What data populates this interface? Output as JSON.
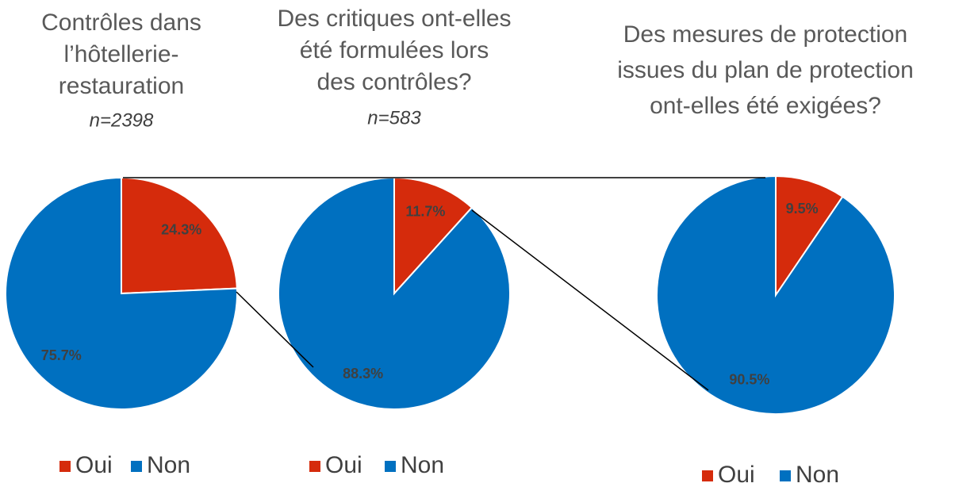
{
  "chart_data": [
    {
      "type": "pie",
      "title": [
        "Contrôles dans",
        "l’hôtellerie-",
        "restauration"
      ],
      "subtitle": "n=2398",
      "categories": [
        "Oui",
        "Non"
      ],
      "values": [
        24.3,
        75.7
      ],
      "value_labels": [
        "24.3%",
        "75.7%"
      ],
      "colors": [
        "#d52b0c",
        "#0070c0"
      ]
    },
    {
      "type": "pie",
      "title": [
        "Des critiques ont-elles",
        "été formulées lors",
        "des contrôles?"
      ],
      "subtitle": "n=583",
      "categories": [
        "Oui",
        "Non"
      ],
      "values": [
        11.7,
        88.3
      ],
      "value_labels": [
        "11.7%",
        "88.3%"
      ],
      "colors": [
        "#d52b0c",
        "#0070c0"
      ]
    },
    {
      "type": "pie",
      "title": [
        "Des mesures de protection",
        "issues du plan de protection",
        "ont-elles été exigées?"
      ],
      "categories": [
        "Oui",
        "Non"
      ],
      "values": [
        9.5,
        90.5
      ],
      "value_labels": [
        "9.5%",
        "90.5%"
      ],
      "colors": [
        "#d52b0c",
        "#0070c0"
      ]
    }
  ]
}
